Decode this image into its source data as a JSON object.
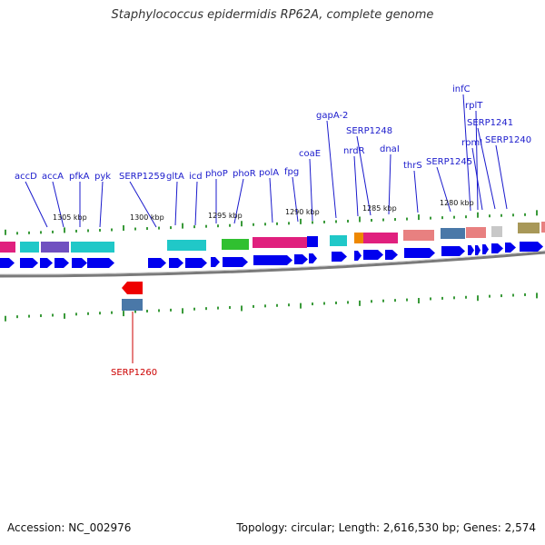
{
  "title": "Staphylococcus epidermidis RP62A, complete genome",
  "footer": {
    "accession": "Accession: NC_002976",
    "stats": "Topology: circular; Length: 2,616,530 bp; Genes: 2,574"
  },
  "colors": {
    "forward_arrow": "#0000ee",
    "reverse_arrow": "#ee0000",
    "backbone": "#808080",
    "tick": "#3a9a3a",
    "label": "#1a1acc",
    "label_highlight": "#cc0000"
  },
  "kbp_labels": [
    "1305 kbp",
    "1300 kbp",
    "1295 kbp",
    "1290 kbp",
    "1285 kbp",
    "1280 kbp"
  ],
  "genes": [
    {
      "name": "accD"
    },
    {
      "name": "accA"
    },
    {
      "name": "pfkA"
    },
    {
      "name": "pyk"
    },
    {
      "name": "SERP1259"
    },
    {
      "name": "gltA"
    },
    {
      "name": "icd"
    },
    {
      "name": "phoP"
    },
    {
      "name": "phoR"
    },
    {
      "name": "polA"
    },
    {
      "name": "fpg"
    },
    {
      "name": "coaE"
    },
    {
      "name": "gapA-2"
    },
    {
      "name": "nrdR"
    },
    {
      "name": "SERP1248"
    },
    {
      "name": "dnaI"
    },
    {
      "name": "thrS"
    },
    {
      "name": "SERP1245"
    },
    {
      "name": "infC"
    },
    {
      "name": "rplT"
    },
    {
      "name": "rpmI"
    },
    {
      "name": "SERP1241"
    },
    {
      "name": "SERP1240"
    },
    {
      "name": "SERP1260",
      "highlight": true
    }
  ]
}
